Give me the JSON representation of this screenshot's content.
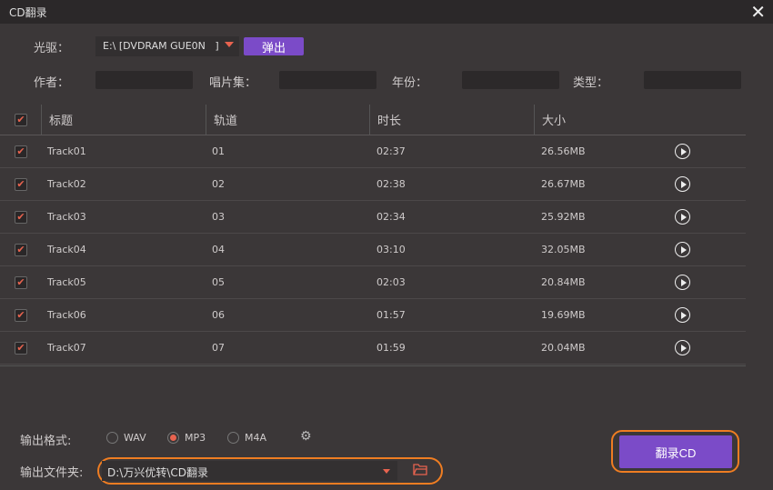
{
  "window": {
    "title": "CD翻录",
    "close_icon": "close-icon"
  },
  "drive": {
    "label": "光驱：",
    "value": "E:\\ [DVDRAM GUE0N   ]",
    "eject_label": "弹出"
  },
  "meta": {
    "artist_label": "作者：",
    "album_label": "唱片集：",
    "year_label": "年份：",
    "genre_label": "类型：",
    "artist": "",
    "album": "",
    "year": "",
    "genre": ""
  },
  "table": {
    "headers": [
      "标题",
      "轨道",
      "时长",
      "大小"
    ],
    "rows": [
      {
        "title": "Track01",
        "track": "01",
        "duration": "02:37",
        "size": "26.56MB",
        "checked": true
      },
      {
        "title": "Track02",
        "track": "02",
        "duration": "02:38",
        "size": "26.67MB",
        "checked": true
      },
      {
        "title": "Track03",
        "track": "03",
        "duration": "02:34",
        "size": "25.92MB",
        "checked": true
      },
      {
        "title": "Track04",
        "track": "04",
        "duration": "03:10",
        "size": "32.05MB",
        "checked": true
      },
      {
        "title": "Track05",
        "track": "05",
        "duration": "02:03",
        "size": "20.84MB",
        "checked": true
      },
      {
        "title": "Track06",
        "track": "06",
        "duration": "01:57",
        "size": "19.69MB",
        "checked": true
      },
      {
        "title": "Track07",
        "track": "07",
        "duration": "01:59",
        "size": "20.04MB",
        "checked": true
      }
    ]
  },
  "output": {
    "format_label": "输出格式:",
    "formats": [
      "WAV",
      "MP3",
      "M4A"
    ],
    "selected_format": "MP3",
    "folder_label": "输出文件夹:",
    "folder": "D:\\万兴优转\\CD翻录",
    "rip_label": "翻录CD"
  },
  "colors": {
    "accent": "#7b4bc8",
    "check": "#e8634f",
    "highlight": "#ef7d22"
  }
}
